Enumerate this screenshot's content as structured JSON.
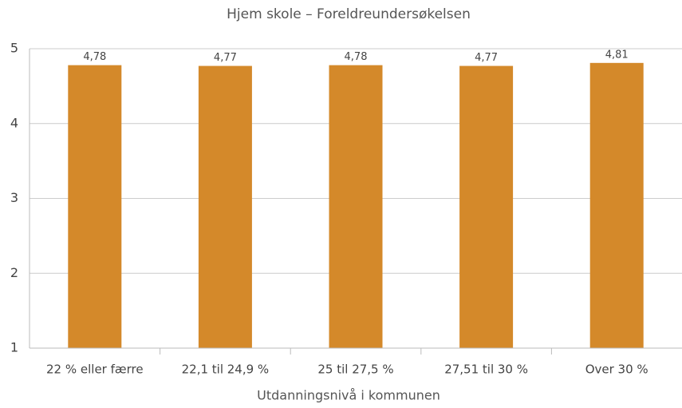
{
  "chart_data": {
    "type": "bar",
    "title": "Hjem skole – Foreldreundersøkelsen",
    "x_label": "Utdanningsnivå i kommunen",
    "categories": [
      "22 % eller færre",
      "22,1 til 24,9 %",
      "25 til 27,5 %",
      "27,51 til 30 %",
      "Over 30 %"
    ],
    "values": [
      4.78,
      4.77,
      4.78,
      4.77,
      4.81
    ],
    "value_labels": [
      "4,78",
      "4,77",
      "4,78",
      "4,77",
      "4,81"
    ],
    "color": "#d4892a",
    "ylim": [
      1,
      5
    ],
    "yticks": [
      1,
      2,
      3,
      4,
      5
    ],
    "grid": true
  }
}
